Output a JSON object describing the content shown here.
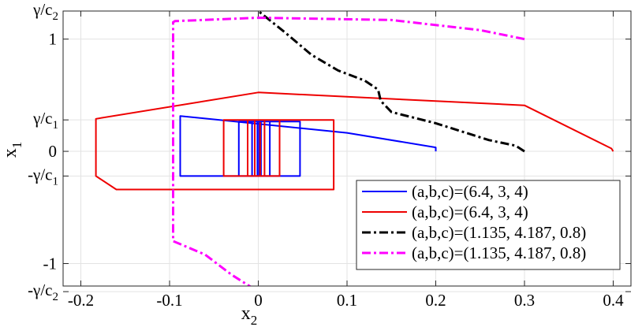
{
  "chart_data": {
    "type": "line",
    "xlabel": "x",
    "xlabel_sub": "2",
    "ylabel": "x",
    "ylabel_sub": "1",
    "xlim": [
      -0.22,
      0.42
    ],
    "ylim": [
      -1.2,
      1.25
    ],
    "grid": true,
    "legend_position": "bottom-right",
    "colors": {
      "blue": "#0000ff",
      "red": "#ee0000",
      "black": "#000000",
      "magenta": "#ff00ff"
    },
    "x_ticks": [
      {
        "value": -0.2,
        "label": "-0.2"
      },
      {
        "value": -0.1,
        "label": "-0.1"
      },
      {
        "value": 0,
        "label": "0"
      },
      {
        "value": 0.1,
        "label": "0.1"
      },
      {
        "value": 0.2,
        "label": "0.2"
      },
      {
        "value": 0.3,
        "label": "0.3"
      },
      {
        "value": 0.4,
        "label": "0.4"
      }
    ],
    "y_ticks": [
      {
        "value": 1.0,
        "label": "1"
      },
      {
        "value": 0.0,
        "label": "0"
      },
      {
        "value": -1.0,
        "label": "-1"
      }
    ],
    "y_symbol_ticks": [
      {
        "value": 1.25,
        "main": "γ/c",
        "sub": "2"
      },
      {
        "value": 0.28,
        "main": "γ/c",
        "sub": "1"
      },
      {
        "value": -0.22,
        "main": "-γ/c",
        "sub": "1"
      },
      {
        "value": -1.25,
        "main": "-γ/c",
        "sub": "2"
      }
    ],
    "series": [
      {
        "name": "(a,b,c)=(6.4, 3, 4)",
        "color": "#0000ff",
        "dash": "solid",
        "points": [
          [
            0.2,
            0
          ],
          [
            0.2,
            0.035
          ],
          [
            0.1,
            0.165
          ],
          [
            -0.088,
            0.315
          ],
          [
            -0.088,
            -0.22
          ],
          [
            0.047,
            -0.22
          ],
          [
            0.047,
            0.265
          ],
          [
            -0.022,
            0.265
          ],
          [
            -0.022,
            -0.22
          ],
          [
            0.013,
            -0.22
          ],
          [
            0.013,
            0.265
          ],
          [
            -0.007,
            0.265
          ],
          [
            -0.007,
            -0.22
          ],
          [
            0.003,
            -0.22
          ],
          [
            0.003,
            0.265
          ],
          [
            -0.001,
            0.265
          ],
          [
            -0.001,
            -0.22
          ],
          [
            0.001,
            -0.22
          ],
          [
            0.001,
            0.26
          ]
        ]
      },
      {
        "name": "(a,b,c)=(6.4, 3, 4)",
        "color": "#ee0000",
        "dash": "solid",
        "points": [
          [
            0.4,
            0
          ],
          [
            0.398,
            0.025
          ],
          [
            0.3,
            0.41
          ],
          [
            0.0,
            0.525
          ],
          [
            -0.183,
            0.29
          ],
          [
            -0.183,
            -0.22
          ],
          [
            -0.16,
            -0.34
          ],
          [
            0.085,
            -0.34
          ],
          [
            0.085,
            0.28
          ],
          [
            -0.039,
            0.28
          ],
          [
            -0.039,
            -0.22
          ],
          [
            0.024,
            -0.22
          ],
          [
            0.024,
            0.28
          ],
          [
            -0.012,
            0.28
          ],
          [
            -0.012,
            -0.22
          ],
          [
            0.007,
            -0.22
          ],
          [
            0.007,
            0.28
          ],
          [
            -0.004,
            0.28
          ],
          [
            -0.004,
            -0.22
          ],
          [
            0.002,
            -0.22
          ],
          [
            0.002,
            0.26
          ]
        ]
      },
      {
        "name": "(a,b,c)=(1.135, 4.187, 0.8)",
        "color": "#000000",
        "dash": "dashdot",
        "points": [
          [
            0.3,
            0
          ],
          [
            0.29,
            0.05
          ],
          [
            0.26,
            0.1
          ],
          [
            0.2,
            0.25
          ],
          [
            0.15,
            0.35
          ],
          [
            0.138,
            0.45
          ],
          [
            0.135,
            0.55
          ],
          [
            0.12,
            0.63
          ],
          [
            0.09,
            0.72
          ],
          [
            0.06,
            0.86
          ],
          [
            0.03,
            1.06
          ],
          [
            0.0,
            1.25
          ]
        ]
      },
      {
        "name": "(a,b,c)=(1.135, 4.187, 0.8)",
        "color": "#ff00ff",
        "dash": "dashdot",
        "points": [
          [
            0.3,
            1.0
          ],
          [
            0.25,
            1.08
          ],
          [
            0.15,
            1.17
          ],
          [
            0.0,
            1.19
          ],
          [
            -0.094,
            1.16
          ],
          [
            -0.096,
            1.15
          ],
          [
            -0.096,
            -0.8
          ],
          [
            -0.06,
            -0.92
          ],
          [
            -0.03,
            -1.1
          ],
          [
            0.0,
            -1.25
          ]
        ]
      }
    ]
  }
}
